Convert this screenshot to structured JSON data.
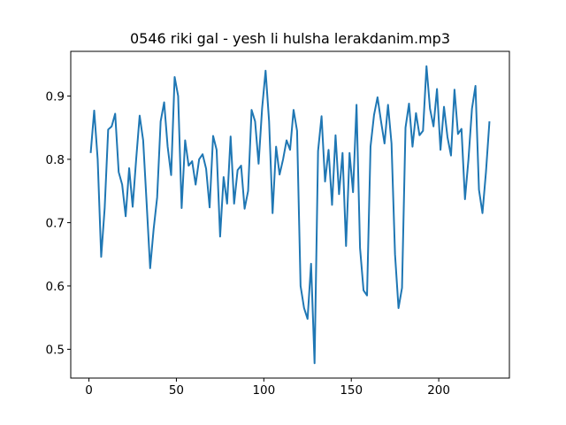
{
  "chart_data": {
    "type": "line",
    "title": "0546 riki gal - yesh li hulsha lerakdanim.mp3",
    "x": [
      1,
      3,
      5,
      7,
      9,
      11,
      13,
      15,
      17,
      19,
      21,
      23,
      25,
      27,
      29,
      31,
      33,
      35,
      37,
      39,
      41,
      43,
      45,
      47,
      49,
      51,
      53,
      55,
      57,
      59,
      61,
      63,
      65,
      67,
      69,
      71,
      73,
      75,
      77,
      79,
      81,
      83,
      85,
      87,
      89,
      91,
      93,
      95,
      97,
      99,
      101,
      103,
      105,
      107,
      109,
      111,
      113,
      115,
      117,
      119,
      121,
      123,
      125,
      127,
      129,
      131,
      133,
      135,
      137,
      139,
      141,
      143,
      145,
      147,
      149,
      151,
      153,
      155,
      157,
      159,
      161,
      163,
      165,
      167,
      169,
      171,
      173,
      175,
      177,
      179,
      181,
      183,
      185,
      187,
      189,
      191,
      193,
      195,
      197,
      199,
      201,
      203,
      205,
      207,
      209,
      211,
      213,
      215,
      217,
      219,
      221,
      223,
      225,
      227,
      229
    ],
    "series": [
      {
        "color": "#1f77b4",
        "values": [
          0.81,
          0.877,
          0.8,
          0.646,
          0.723,
          0.847,
          0.852,
          0.872,
          0.78,
          0.76,
          0.71,
          0.786,
          0.725,
          0.8,
          0.869,
          0.83,
          0.73,
          0.628,
          0.69,
          0.74,
          0.86,
          0.89,
          0.82,
          0.775,
          0.93,
          0.9,
          0.723,
          0.83,
          0.79,
          0.797,
          0.76,
          0.8,
          0.808,
          0.785,
          0.724,
          0.837,
          0.815,
          0.678,
          0.772,
          0.73,
          0.836,
          0.73,
          0.783,
          0.79,
          0.722,
          0.75,
          0.878,
          0.86,
          0.793,
          0.88,
          0.94,
          0.86,
          0.715,
          0.82,
          0.776,
          0.8,
          0.83,
          0.815,
          0.878,
          0.845,
          0.6,
          0.565,
          0.548,
          0.635,
          0.478,
          0.813,
          0.868,
          0.765,
          0.815,
          0.728,
          0.838,
          0.745,
          0.81,
          0.663,
          0.81,
          0.748,
          0.886,
          0.66,
          0.593,
          0.585,
          0.82,
          0.87,
          0.898,
          0.86,
          0.825,
          0.886,
          0.825,
          0.65,
          0.565,
          0.597,
          0.85,
          0.888,
          0.82,
          0.873,
          0.838,
          0.845,
          0.947,
          0.88,
          0.852,
          0.911,
          0.815,
          0.883,
          0.835,
          0.806,
          0.91,
          0.84,
          0.848,
          0.737,
          0.8,
          0.88,
          0.916,
          0.752,
          0.715,
          0.78,
          0.86
        ]
      }
    ],
    "xlim": [
      -10.4,
      240.4
    ],
    "xticks": [
      0,
      50,
      100,
      150,
      200
    ],
    "ylim": [
      0.4545,
      0.9705
    ],
    "yticks": [
      0.5,
      0.6,
      0.7,
      0.8,
      0.9
    ],
    "grid": false
  }
}
